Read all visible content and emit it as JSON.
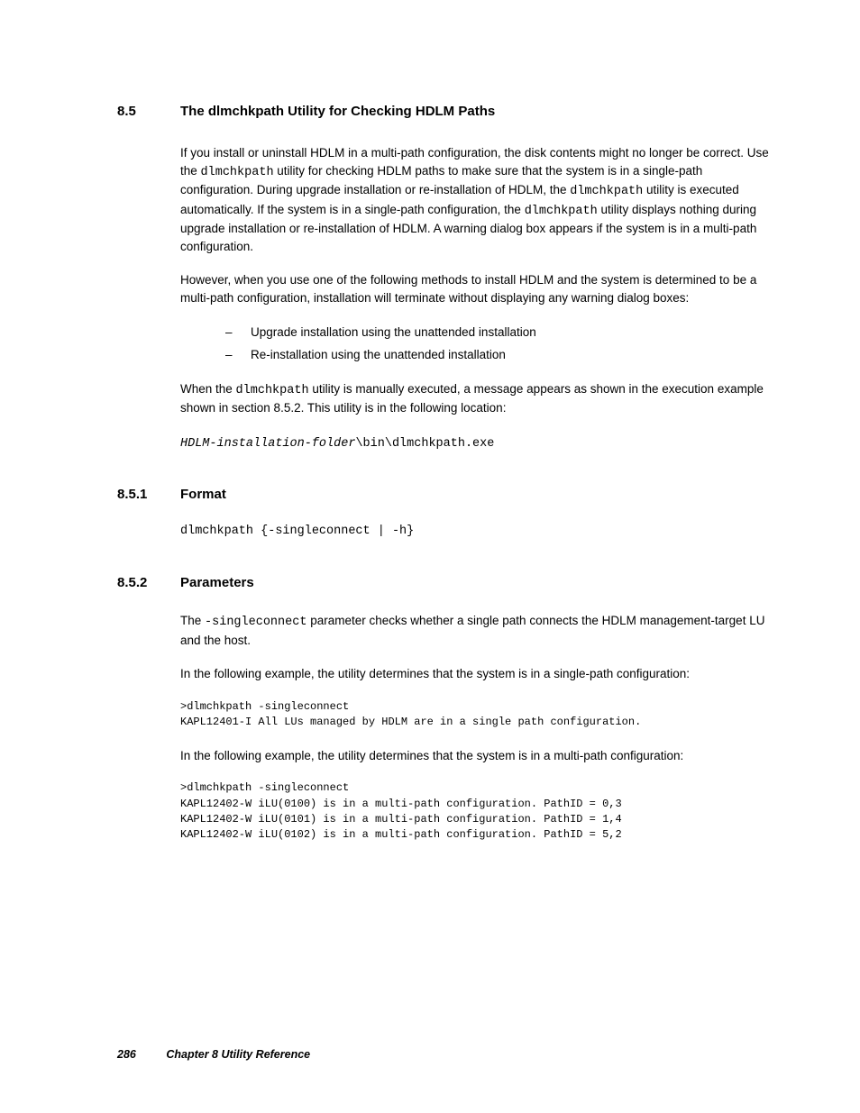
{
  "section": {
    "number": "8.5",
    "title": "The dlmchkpath Utility for Checking HDLM Paths"
  },
  "para1_a": "If you install or uninstall HDLM in a multi-path configuration, the disk contents might no longer be correct. Use the ",
  "para1_code1": "dlmchkpath",
  "para1_b": " utility for checking HDLM paths to make sure that the system is in a single-path configuration. During upgrade installation or re-installation of HDLM, the ",
  "para1_code2": "dlmchkpath",
  "para1_c": " utility is executed automatically. If the system is in a single-path configuration, the ",
  "para1_code3": "dlmchkpath",
  "para1_d": " utility displays nothing during upgrade installation or re-installation of HDLM. A warning dialog box appears if the system is in a multi-path configuration.",
  "para2": "However, when you use one of the following methods to install HDLM and the system is determined to be a multi-path configuration, installation will terminate without displaying any warning dialog boxes:",
  "bullets": [
    "Upgrade installation using the unattended installation",
    "Re-installation using the unattended installation"
  ],
  "para3_a": "When the ",
  "para3_code": "dlmchkpath",
  "para3_b": " utility is manually executed, a message appears as shown in the execution example shown in section 8.5.2. This utility is in the following location:",
  "path_prefix": "HDLM-installation-folder",
  "path_suffix": "\\bin\\dlmchkpath.exe",
  "sub1": {
    "number": "8.5.1",
    "title": "Format"
  },
  "format_code": "dlmchkpath {-singleconnect | -h}",
  "sub2": {
    "number": "8.5.2",
    "title": "Parameters"
  },
  "param_a": "The ",
  "param_code": "-singleconnect",
  "param_b": " parameter checks whether a single path connects the HDLM management-target LU and the host.",
  "ex1_intro": "In the following example, the utility determines that the system is in a single-path configuration:",
  "ex1_code": ">dlmchkpath -singleconnect\nKAPL12401-I All LUs managed by HDLM are in a single path configuration.",
  "ex2_intro": "In the following example, the utility determines that the system is in a multi-path configuration:",
  "ex2_code": ">dlmchkpath -singleconnect\nKAPL12402-W iLU(0100) is in a multi-path configuration. PathID = 0,3\nKAPL12402-W iLU(0101) is in a multi-path configuration. PathID = 1,4\nKAPL12402-W iLU(0102) is in a multi-path configuration. PathID = 5,2",
  "footer": {
    "page": "286",
    "chapter": "Chapter 8   Utility Reference"
  }
}
